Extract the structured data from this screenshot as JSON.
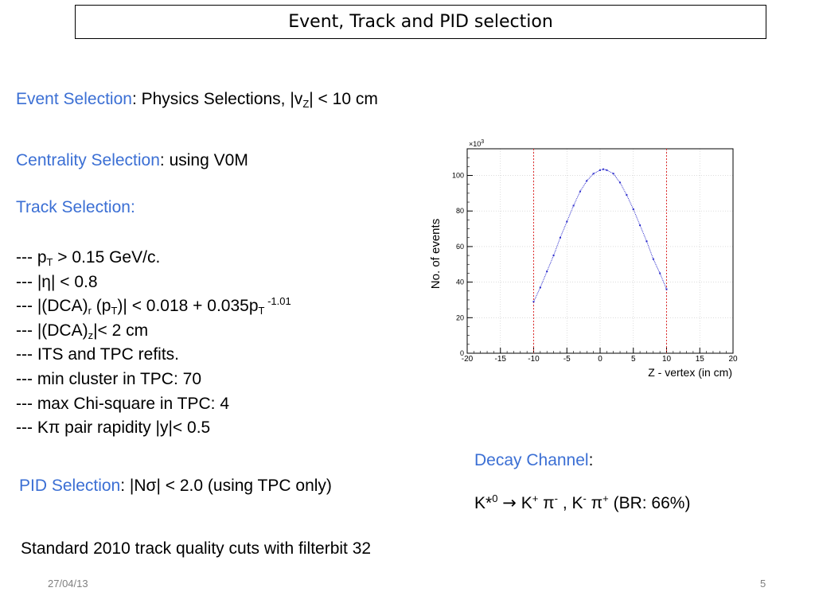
{
  "slide": {
    "title": "Event, Track  and PID selection",
    "date": "27/04/13",
    "page_number": "5"
  },
  "event": {
    "label": "Event Selection",
    "text_a": ": Physics Selections,  |v",
    "text_sub": "Z",
    "text_b": "| < 10 cm"
  },
  "centrality": {
    "label": "Centrality Selection",
    "text": ": using V0M"
  },
  "track": {
    "label": "Track Selection:",
    "cuts": {
      "pt_a": "--- p",
      "pt_sub": "T",
      "pt_b": " > 0.15 GeV/c.",
      "eta": "--- |η| < 0.8",
      "dcar_a": "--- |(DCA)",
      "dcar_sub1": "r",
      "dcar_b": " (p",
      "dcar_sub2": "T",
      "dcar_c": ")| < 0.018 + 0.035p",
      "dcar_sub3": "T",
      "dcar_sup": " -1.01",
      "dcaz_a": "--- |(DCA)",
      "dcaz_sub": "z",
      "dcaz_b": "|< 2 cm",
      "refit": "--- ITS and TPC refits.",
      "cluster": "--- min cluster in TPC:  70",
      "chi2": "--- max Chi-square in TPC: 4",
      "rapidity": "--- Kπ pair rapidity |y|< 0.5"
    }
  },
  "pid": {
    "label": "PID Selection",
    "text": ": |Nσ| < 2.0 (using TPC only)"
  },
  "decay": {
    "label": "Decay Channel",
    "colon": ":",
    "k_star": "K*",
    "k_star_sup": "0",
    "arrow": "→",
    "kplus": " K",
    "kplus_sup": "+",
    "piminus": " π",
    "piminus_sup": "-",
    "sep": " , K",
    "kminus_sup": "-",
    "piplus": " π",
    "piplus_sup": "+",
    "br": "  (BR: 66%)"
  },
  "standard_note": "Standard 2010 track quality cuts with filterbit 32",
  "chart_data": {
    "type": "scatter",
    "xlabel": "Z - vertex (in cm)",
    "ylabel": "No. of events",
    "y_multiplier": "×10",
    "y_multiplier_exp": "3",
    "xlim": [
      -20,
      20
    ],
    "ylim": [
      0,
      115
    ],
    "xticks": [
      -20,
      -15,
      -10,
      -5,
      0,
      5,
      10,
      15,
      20
    ],
    "yticks": [
      0,
      20,
      40,
      60,
      80,
      100
    ],
    "cut_lines": [
      -10,
      10
    ],
    "x": [
      -10,
      -9,
      -8,
      -7,
      -6,
      -5,
      -4,
      -3,
      -2,
      -1,
      0,
      0.5,
      1,
      2,
      3,
      4,
      5,
      6,
      7,
      8,
      9,
      10
    ],
    "y": [
      29,
      37,
      46,
      55,
      65,
      74,
      83,
      91,
      97,
      101,
      103,
      103.5,
      103,
      101,
      96,
      89,
      81,
      72,
      63,
      53,
      45,
      36
    ],
    "colors": {
      "data": "#2b2bcc",
      "cut_line": "#e03030"
    }
  }
}
